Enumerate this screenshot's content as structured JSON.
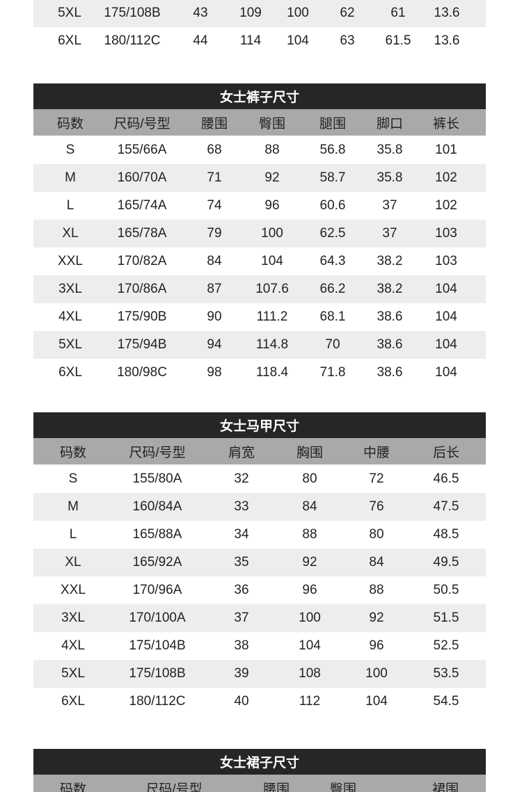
{
  "top_table": {
    "rows": [
      [
        "5XL",
        "175/108B",
        "43",
        "109",
        "100",
        "62",
        "61",
        "13.6"
      ],
      [
        "6XL",
        "180/112C",
        "44",
        "114",
        "104",
        "63",
        "61.5",
        "13.6"
      ]
    ]
  },
  "pants_table": {
    "title": "女士裤子尺寸",
    "headers": [
      "码数",
      "尺码/号型",
      "腰围",
      "臀围",
      "腿围",
      "脚口",
      "裤长"
    ],
    "rows": [
      [
        "S",
        "155/66A",
        "68",
        "88",
        "56.8",
        "35.8",
        "101"
      ],
      [
        "M",
        "160/70A",
        "71",
        "92",
        "58.7",
        "35.8",
        "102"
      ],
      [
        "L",
        "165/74A",
        "74",
        "96",
        "60.6",
        "37",
        "102"
      ],
      [
        "XL",
        "165/78A",
        "79",
        "100",
        "62.5",
        "37",
        "103"
      ],
      [
        "XXL",
        "170/82A",
        "84",
        "104",
        "64.3",
        "38.2",
        "103"
      ],
      [
        "3XL",
        "170/86A",
        "87",
        "107.6",
        "66.2",
        "38.2",
        "104"
      ],
      [
        "4XL",
        "175/90B",
        "90",
        "111.2",
        "68.1",
        "38.6",
        "104"
      ],
      [
        "5XL",
        "175/94B",
        "94",
        "114.8",
        "70",
        "38.6",
        "104"
      ],
      [
        "6XL",
        "180/98C",
        "98",
        "118.4",
        "71.8",
        "38.6",
        "104"
      ]
    ]
  },
  "vest_table": {
    "title": "女士马甲尺寸",
    "headers": [
      "码数",
      "尺码/号型",
      "肩宽",
      "胸围",
      "中腰",
      "后长"
    ],
    "rows": [
      [
        "S",
        "155/80A",
        "32",
        "80",
        "72",
        "46.5"
      ],
      [
        "M",
        "160/84A",
        "33",
        "84",
        "76",
        "47.5"
      ],
      [
        "L",
        "165/88A",
        "34",
        "88",
        "80",
        "48.5"
      ],
      [
        "XL",
        "165/92A",
        "35",
        "92",
        "84",
        "49.5"
      ],
      [
        "XXL",
        "170/96A",
        "36",
        "96",
        "88",
        "50.5"
      ],
      [
        "3XL",
        "170/100A",
        "37",
        "100",
        "92",
        "51.5"
      ],
      [
        "4XL",
        "175/104B",
        "38",
        "104",
        "96",
        "52.5"
      ],
      [
        "5XL",
        "175/108B",
        "39",
        "108",
        "100",
        "53.5"
      ],
      [
        "6XL",
        "180/112C",
        "40",
        "112",
        "104",
        "54.5"
      ]
    ]
  },
  "skirt_table": {
    "title": "女士裙子尺寸",
    "headers": [
      "码数",
      "尺码/号型",
      "腰围",
      "臀围",
      "裙围"
    ]
  },
  "colors": {
    "title_bg": "#262626",
    "header_bg": "#a9a9a9",
    "alt_row_bg": "#ededed"
  }
}
